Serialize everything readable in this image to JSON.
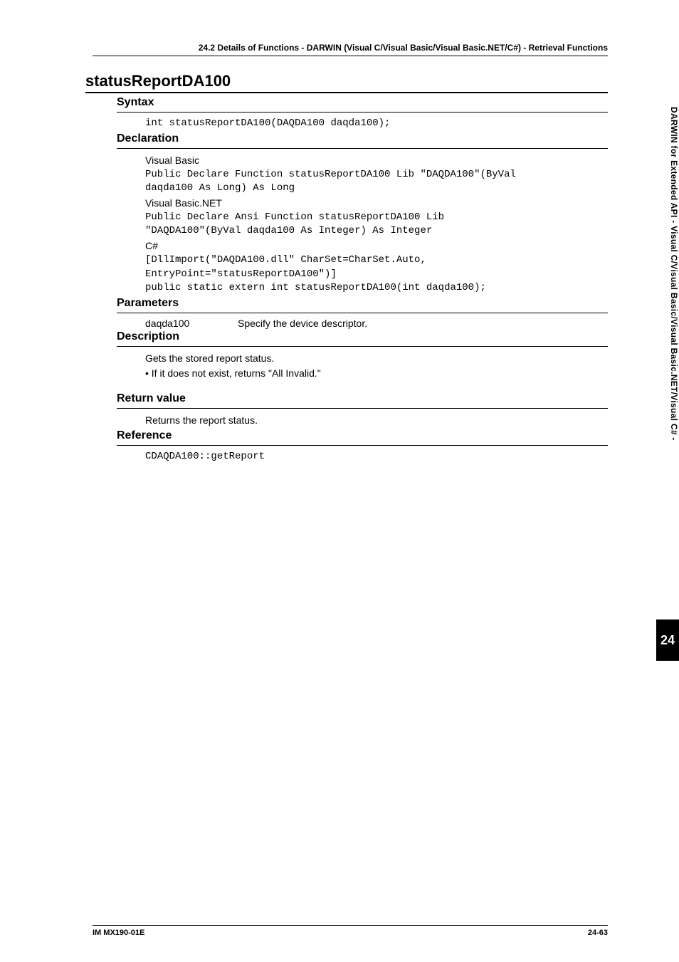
{
  "header": {
    "top": "24.2  Details of Functions - DARWIN (Visual C/Visual Basic/Visual Basic.NET/C#) - Retrieval Functions"
  },
  "function": {
    "name": "statusReportDA100"
  },
  "syntax": {
    "title": "Syntax",
    "code": "int statusReportDA100(DAQDA100 daqda100);"
  },
  "declaration": {
    "title": "Declaration",
    "vb_label": "Visual Basic",
    "vb_code1": "Public Declare Function statusReportDA100 Lib \"DAQDA100\"(ByVal",
    "vb_code2": "daqda100 As Long) As Long",
    "vbnet_label": "Visual Basic.NET",
    "vbnet_code1": "Public Declare Ansi Function statusReportDA100 Lib",
    "vbnet_code2": "\"DAQDA100\"(ByVal daqda100 As Integer) As Integer",
    "cs_label": "C#",
    "cs_code1": "[DllImport(\"DAQDA100.dll\" CharSet=CharSet.Auto,",
    "cs_code2": "EntryPoint=\"statusReportDA100\")]",
    "cs_code3": "public static extern int statusReportDA100(int daqda100);"
  },
  "parameters": {
    "title": "Parameters",
    "name": "daqda100",
    "desc": "Specify the device descriptor."
  },
  "description": {
    "title": "Description",
    "line1": "Gets the stored report status.",
    "bullet1": "•  If it does not exist, returns \"All Invalid.\""
  },
  "return": {
    "title": "Return value",
    "line1": "Returns the report status."
  },
  "reference": {
    "title": "Reference",
    "code": "CDAQDA100::getReport"
  },
  "sidebar": {
    "text": "DARWIN for Extended API - Visual C/Visual Basic/Visual Basic.NET/Visual C# -",
    "tab": "24"
  },
  "footer": {
    "left": "IM MX190-01E",
    "right": "24-63"
  }
}
